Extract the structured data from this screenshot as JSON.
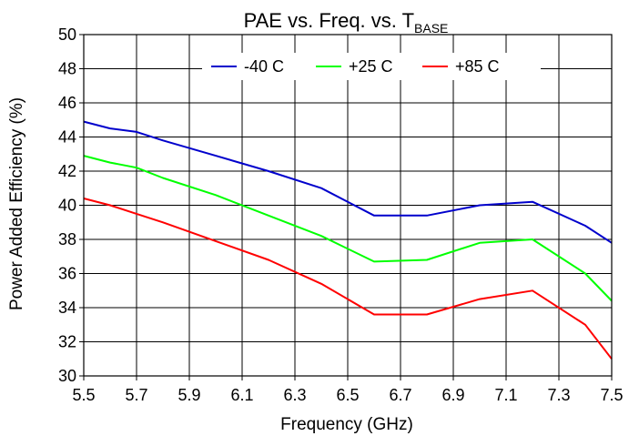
{
  "chart_data": {
    "type": "line",
    "title": "PAE vs. Freq. vs. T",
    "title_subscript": "BASE",
    "xlabel": "Frequency (GHz)",
    "ylabel": "Power Added Efficiency (%)",
    "xlim": [
      5.5,
      7.5
    ],
    "ylim": [
      30,
      50
    ],
    "xticks": [
      "5.5",
      "5.7",
      "5.9",
      "6.1",
      "6.3",
      "6.5",
      "6.7",
      "6.9",
      "7.1",
      "7.3",
      "7.5"
    ],
    "yticks": [
      "30",
      "32",
      "34",
      "36",
      "38",
      "40",
      "42",
      "44",
      "46",
      "48",
      "50"
    ],
    "grid": true,
    "legend_position": "top",
    "x": [
      5.5,
      5.6,
      5.7,
      5.8,
      6.0,
      6.2,
      6.4,
      6.6,
      6.8,
      7.0,
      7.2,
      7.4,
      7.5
    ],
    "series": [
      {
        "name": "-40 C",
        "color": "#0000cc",
        "values": [
          44.9,
          44.5,
          44.3,
          43.8,
          42.9,
          42.0,
          41.0,
          39.4,
          39.4,
          40.0,
          40.2,
          38.8,
          37.8
        ]
      },
      {
        "name": "+25 C",
        "color": "#00ff00",
        "values": [
          42.9,
          42.5,
          42.2,
          41.6,
          40.6,
          39.4,
          38.2,
          36.7,
          36.8,
          37.8,
          38.0,
          36.0,
          34.4
        ]
      },
      {
        "name": "+85 C",
        "color": "#ff0000",
        "values": [
          40.4,
          40.0,
          39.5,
          39.0,
          37.9,
          36.8,
          35.4,
          33.6,
          33.6,
          34.5,
          35.0,
          33.0,
          31.0
        ]
      }
    ]
  }
}
